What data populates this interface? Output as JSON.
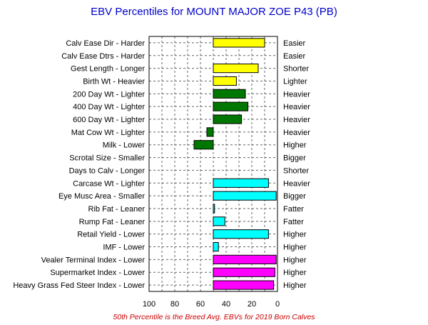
{
  "chart_data": {
    "type": "bar",
    "orientation": "horizontal",
    "title": "EBV Percentiles for MOUNT MAJOR ZOE P43 (PB)",
    "footnote": "50th Percentile is the Breed Avg. EBVs for 2019 Born Calves",
    "xlim": [
      100,
      0
    ],
    "x_ticks": [
      "100",
      "80",
      "60",
      "40",
      "20",
      "0"
    ],
    "grid": true,
    "baseline": 50,
    "colors": {
      "title": "#0000cc",
      "footnote": "#cc0000",
      "yellow": "#ffff00",
      "green": "#007700",
      "cyan": "#00ffff",
      "magenta": "#ff00ff"
    },
    "rows": [
      {
        "label": "Calv Ease Dir - Harder",
        "right": "Easier",
        "value": 10,
        "color": "yellow"
      },
      {
        "label": "Calv Ease Dtrs - Harder",
        "right": "Easier",
        "value": null,
        "color": "yellow"
      },
      {
        "label": "Gest Length - Longer",
        "right": "Shorter",
        "value": 15,
        "color": "yellow"
      },
      {
        "label": "Birth Wt - Heavier",
        "right": "Lighter",
        "value": 32,
        "color": "yellow"
      },
      {
        "label": "200 Day Wt - Lighter",
        "right": "Heavier",
        "value": 25,
        "color": "green"
      },
      {
        "label": "400 Day Wt - Lighter",
        "right": "Heavier",
        "value": 23,
        "color": "green"
      },
      {
        "label": "600 Day Wt - Lighter",
        "right": "Heavier",
        "value": 28,
        "color": "green"
      },
      {
        "label": "Mat Cow Wt - Lighter",
        "right": "Heavier",
        "value": 55,
        "color": "green"
      },
      {
        "label": "Milk - Lower",
        "right": "Higher",
        "value": 65,
        "color": "green"
      },
      {
        "label": "Scrotal Size - Smaller",
        "right": "Bigger",
        "value": null,
        "color": "cyan"
      },
      {
        "label": "Days to Calv - Longer",
        "right": "Shorter",
        "value": null,
        "color": "cyan"
      },
      {
        "label": "Carcase Wt - Lighter",
        "right": "Heavier",
        "value": 7,
        "color": "cyan"
      },
      {
        "label": "Eye Musc Area - Smaller",
        "right": "Bigger",
        "value": 1,
        "color": "cyan"
      },
      {
        "label": "Rib Fat - Leaner",
        "right": "Fatter",
        "value": 49,
        "color": "cyan"
      },
      {
        "label": "Rump Fat - Leaner",
        "right": "Fatter",
        "value": 41,
        "color": "cyan"
      },
      {
        "label": "Retail Yield - Lower",
        "right": "Higher",
        "value": 7,
        "color": "cyan"
      },
      {
        "label": "IMF - Lower",
        "right": "Higher",
        "value": 46,
        "color": "cyan"
      },
      {
        "label": "Vealer Terminal Index - Lower",
        "right": "Higher",
        "value": 1,
        "color": "magenta"
      },
      {
        "label": "Supermarket Index - Lower",
        "right": "Higher",
        "value": 2,
        "color": "magenta"
      },
      {
        "label": "Heavy Grass Fed Steer Index - Lower",
        "right": "Higher",
        "value": 3,
        "color": "magenta"
      }
    ]
  }
}
